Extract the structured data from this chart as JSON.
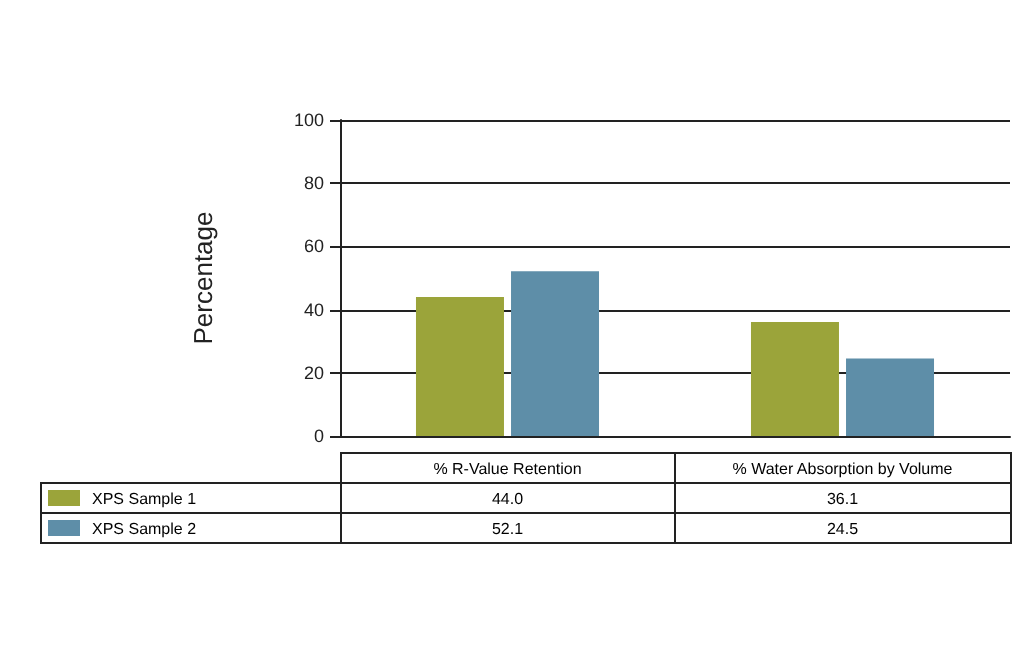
{
  "chart_data": {
    "type": "bar",
    "ylabel": "Percentage",
    "categories": [
      "% R-Value Retention",
      "% Water Absorption by Volume"
    ],
    "series": [
      {
        "name": "XPS Sample 1",
        "color": "#9ba43a",
        "values": [
          44.0,
          36.1
        ],
        "value_labels": [
          "44.0",
          "36.1"
        ]
      },
      {
        "name": "XPS Sample 2",
        "color": "#5e8ea8",
        "values": [
          52.1,
          24.5
        ],
        "value_labels": [
          "52.1",
          "24.5"
        ]
      }
    ],
    "ylim": [
      0,
      100
    ],
    "yticks": [
      0,
      20,
      40,
      60,
      80,
      100
    ],
    "grid": "y",
    "legend": "bottom"
  }
}
